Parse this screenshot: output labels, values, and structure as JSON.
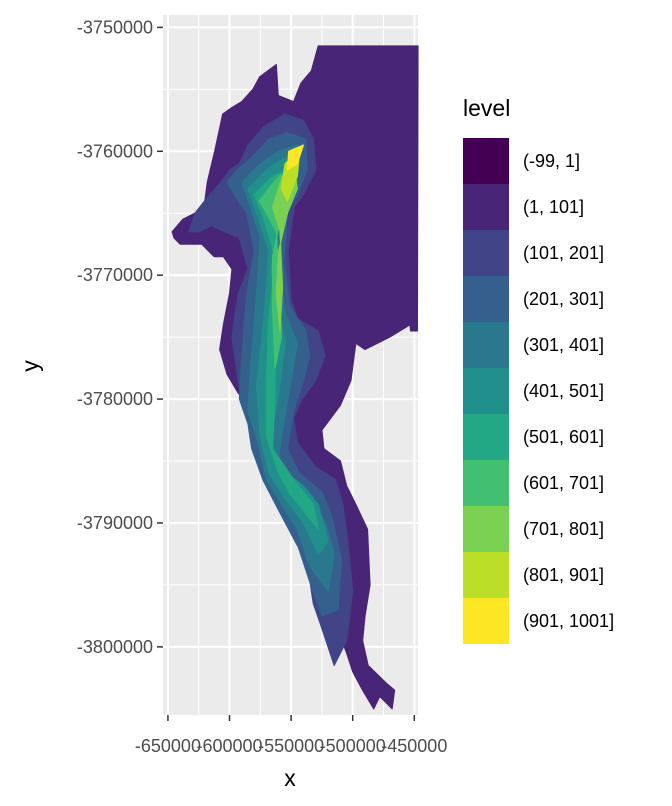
{
  "chart_data": {
    "type": "heatmap",
    "subtype": "filled-contour-map",
    "title": "",
    "xlabel": "x",
    "ylabel": "y",
    "xlim": [
      -654000,
      -447000
    ],
    "ylim": [
      -3805500,
      -3749000
    ],
    "x_ticks": [
      -650000,
      -600000,
      -550000,
      -500000,
      -450000
    ],
    "x_tick_labels": [
      "-650000",
      "-600000",
      "-550000",
      "-500000",
      "-450000"
    ],
    "y_ticks": [
      -3750000,
      -3760000,
      -3770000,
      -3780000,
      -3790000,
      -3800000
    ],
    "y_tick_labels": [
      "-3750000",
      "-3760000",
      "-3770000",
      "-3780000",
      "-3790000",
      "-3800000"
    ],
    "grid": true,
    "legend": {
      "title": "level",
      "position": "right",
      "entries": [
        {
          "label": "(-99, 1]",
          "color": "#440154"
        },
        {
          "label": "(1, 101]",
          "color": "#482576"
        },
        {
          "label": "(101, 201]",
          "color": "#414487"
        },
        {
          "label": "(201, 301]",
          "color": "#35608D"
        },
        {
          "label": "(301, 401]",
          "color": "#2A788E"
        },
        {
          "label": "(401, 501]",
          "color": "#21908C"
        },
        {
          "label": "(501, 601]",
          "color": "#22A884"
        },
        {
          "label": "(601, 701]",
          "color": "#43BF71"
        },
        {
          "label": "(701, 801]",
          "color": "#7AD151"
        },
        {
          "label": "(801, 901]",
          "color": "#BBDF27"
        },
        {
          "label": "(901, 1001]",
          "color": "#FDE725"
        }
      ]
    },
    "regions": [
      {
        "level": 1,
        "points": [
          [
            -575500,
            -3754000
          ],
          [
            -562000,
            -3753000
          ],
          [
            -560500,
            -3755500
          ],
          [
            -548000,
            -3756000
          ],
          [
            -542000,
            -3754500
          ],
          [
            -533500,
            -3753500
          ],
          [
            -528000,
            -3751500
          ],
          [
            -497500,
            -3751500
          ],
          [
            -472000,
            -3751500
          ],
          [
            -447000,
            -3751500
          ],
          [
            -447500,
            -3774500
          ],
          [
            -453000,
            -3774500
          ],
          [
            -453500,
            -3774000
          ],
          [
            -470000,
            -3775000
          ],
          [
            -490000,
            -3776000
          ],
          [
            -497500,
            -3775500
          ],
          [
            -501500,
            -3778500
          ],
          [
            -510000,
            -3780500
          ],
          [
            -525000,
            -3782500
          ],
          [
            -523500,
            -3784000
          ],
          [
            -510000,
            -3785000
          ],
          [
            -505000,
            -3787000
          ],
          [
            -497500,
            -3788500
          ],
          [
            -488000,
            -3790500
          ],
          [
            -486000,
            -3795000
          ],
          [
            -490000,
            -3797500
          ],
          [
            -492000,
            -3799500
          ],
          [
            -487500,
            -3801500
          ],
          [
            -472000,
            -3803000
          ],
          [
            -466000,
            -3803500
          ],
          [
            -468000,
            -3805000
          ],
          [
            -478000,
            -3804000
          ],
          [
            -483000,
            -3805000
          ],
          [
            -492000,
            -3803500
          ],
          [
            -500000,
            -3802000
          ],
          [
            -505000,
            -3800500
          ],
          [
            -512500,
            -3798500
          ],
          [
            -520000,
            -3797000
          ],
          [
            -528000,
            -3795500
          ],
          [
            -536000,
            -3793000
          ],
          [
            -546000,
            -3791000
          ],
          [
            -560000,
            -3788000
          ],
          [
            -567000,
            -3785500
          ],
          [
            -577500,
            -3783000
          ],
          [
            -585000,
            -3780500
          ],
          [
            -593000,
            -3779500
          ],
          [
            -602000,
            -3778000
          ],
          [
            -608000,
            -3776000
          ],
          [
            -605000,
            -3774000
          ],
          [
            -600000,
            -3771500
          ],
          [
            -598000,
            -3769500
          ],
          [
            -605000,
            -3768500
          ],
          [
            -612500,
            -3768500
          ],
          [
            -622500,
            -3767500
          ],
          [
            -635000,
            -3767500
          ],
          [
            -640000,
            -3767500
          ],
          [
            -645000,
            -3767000
          ],
          [
            -646500,
            -3766500
          ],
          [
            -638000,
            -3765500
          ],
          [
            -628000,
            -3765000
          ],
          [
            -620000,
            -3764000
          ],
          [
            -618000,
            -3762500
          ],
          [
            -612000,
            -3760000
          ],
          [
            -605500,
            -3757000
          ],
          [
            -598500,
            -3756500
          ],
          [
            -590000,
            -3756000
          ],
          [
            -581000,
            -3755000
          ]
        ]
      },
      {
        "level": 2,
        "points": [
          [
            -585000,
            -3759500
          ],
          [
            -572000,
            -3758000
          ],
          [
            -555000,
            -3757000
          ],
          [
            -540000,
            -3757500
          ],
          [
            -532000,
            -3759000
          ],
          [
            -530000,
            -3761500
          ],
          [
            -540000,
            -3763500
          ],
          [
            -547500,
            -3764500
          ],
          [
            -552500,
            -3768000
          ],
          [
            -550000,
            -3772000
          ],
          [
            -545000,
            -3773500
          ],
          [
            -528000,
            -3774500
          ],
          [
            -522500,
            -3776500
          ],
          [
            -530000,
            -3778500
          ],
          [
            -541000,
            -3780000
          ],
          [
            -548000,
            -3781500
          ],
          [
            -545000,
            -3783500
          ],
          [
            -530000,
            -3785500
          ],
          [
            -514000,
            -3786500
          ],
          [
            -508000,
            -3788500
          ],
          [
            -504000,
            -3791500
          ],
          [
            -500000,
            -3795500
          ],
          [
            -505000,
            -3799500
          ],
          [
            -515000,
            -3801500
          ],
          [
            -525000,
            -3798500
          ],
          [
            -532000,
            -3796500
          ],
          [
            -538000,
            -3792500
          ],
          [
            -548000,
            -3790500
          ],
          [
            -558000,
            -3788000
          ],
          [
            -570000,
            -3785000
          ],
          [
            -580000,
            -3782500
          ],
          [
            -588000,
            -3781000
          ],
          [
            -593000,
            -3778500
          ],
          [
            -598000,
            -3775000
          ],
          [
            -593000,
            -3771500
          ],
          [
            -585000,
            -3769500
          ],
          [
            -592000,
            -3767000
          ],
          [
            -604000,
            -3766500
          ],
          [
            -615000,
            -3766000
          ],
          [
            -625000,
            -3766500
          ],
          [
            -633000,
            -3766500
          ],
          [
            -628000,
            -3765000
          ],
          [
            -616000,
            -3763500
          ],
          [
            -607000,
            -3762500
          ],
          [
            -600000,
            -3761500
          ],
          [
            -592000,
            -3761000
          ]
        ]
      },
      {
        "level": 3,
        "points": [
          [
            -582000,
            -3760500
          ],
          [
            -568000,
            -3759000
          ],
          [
            -553000,
            -3758500
          ],
          [
            -538000,
            -3759000
          ],
          [
            -537000,
            -3761500
          ],
          [
            -545000,
            -3763500
          ],
          [
            -553000,
            -3765000
          ],
          [
            -556000,
            -3769000
          ],
          [
            -551000,
            -3772500
          ],
          [
            -538000,
            -3774500
          ],
          [
            -535000,
            -3776500
          ],
          [
            -540000,
            -3778500
          ],
          [
            -548000,
            -3781000
          ],
          [
            -553000,
            -3784000
          ],
          [
            -543000,
            -3786000
          ],
          [
            -525000,
            -3787500
          ],
          [
            -517000,
            -3789500
          ],
          [
            -509000,
            -3793000
          ],
          [
            -512000,
            -3797000
          ],
          [
            -525000,
            -3797500
          ],
          [
            -534000,
            -3795000
          ],
          [
            -544000,
            -3792000
          ],
          [
            -560000,
            -3789000
          ],
          [
            -573000,
            -3786500
          ],
          [
            -582000,
            -3784000
          ],
          [
            -585000,
            -3782000
          ],
          [
            -592000,
            -3780000
          ],
          [
            -590000,
            -3776500
          ],
          [
            -586000,
            -3771500
          ],
          [
            -580000,
            -3768000
          ],
          [
            -586000,
            -3765000
          ],
          [
            -596000,
            -3763500
          ],
          [
            -602000,
            -3762500
          ],
          [
            -594000,
            -3761500
          ]
        ]
      },
      {
        "level": 4,
        "points": [
          [
            -575000,
            -3761000
          ],
          [
            -560000,
            -3760000
          ],
          [
            -545000,
            -3759500
          ],
          [
            -545000,
            -3762500
          ],
          [
            -555000,
            -3764500
          ],
          [
            -560000,
            -3769500
          ],
          [
            -555000,
            -3773000
          ],
          [
            -545000,
            -3775500
          ],
          [
            -550000,
            -3778500
          ],
          [
            -557000,
            -3782500
          ],
          [
            -562000,
            -3786000
          ],
          [
            -548000,
            -3787500
          ],
          [
            -532000,
            -3788500
          ],
          [
            -522000,
            -3790000
          ],
          [
            -515000,
            -3792500
          ],
          [
            -520000,
            -3795500
          ],
          [
            -535000,
            -3793500
          ],
          [
            -545000,
            -3790500
          ],
          [
            -558000,
            -3788500
          ],
          [
            -570000,
            -3786500
          ],
          [
            -577000,
            -3783500
          ],
          [
            -585000,
            -3781000
          ],
          [
            -583000,
            -3777500
          ],
          [
            -578000,
            -3771500
          ],
          [
            -575000,
            -3767000
          ],
          [
            -583000,
            -3764500
          ],
          [
            -590000,
            -3762500
          ]
        ]
      },
      {
        "level": 5,
        "points": [
          [
            -570000,
            -3761500
          ],
          [
            -555000,
            -3760500
          ],
          [
            -548000,
            -3761500
          ],
          [
            -557000,
            -3763500
          ],
          [
            -563000,
            -3768500
          ],
          [
            -560000,
            -3772500
          ],
          [
            -555000,
            -3775500
          ],
          [
            -560000,
            -3779500
          ],
          [
            -567000,
            -3783500
          ],
          [
            -560000,
            -3785500
          ],
          [
            -540000,
            -3787000
          ],
          [
            -528000,
            -3788500
          ],
          [
            -520000,
            -3791500
          ],
          [
            -528000,
            -3792500
          ],
          [
            -540000,
            -3790000
          ],
          [
            -555000,
            -3788000
          ],
          [
            -568000,
            -3786000
          ],
          [
            -575000,
            -3783000
          ],
          [
            -578000,
            -3779000
          ],
          [
            -572000,
            -3773500
          ],
          [
            -568000,
            -3768000
          ],
          [
            -578000,
            -3765000
          ],
          [
            -585000,
            -3763000
          ]
        ]
      },
      {
        "level": 6,
        "points": [
          [
            -565000,
            -3762000
          ],
          [
            -552000,
            -3761500
          ],
          [
            -560000,
            -3765000
          ],
          [
            -566000,
            -3769500
          ],
          [
            -563000,
            -3774500
          ],
          [
            -563000,
            -3779500
          ],
          [
            -565000,
            -3784000
          ],
          [
            -548000,
            -3786500
          ],
          [
            -532000,
            -3788500
          ],
          [
            -528000,
            -3790500
          ],
          [
            -540000,
            -3789000
          ],
          [
            -552000,
            -3787500
          ],
          [
            -560000,
            -3786000
          ],
          [
            -570000,
            -3783000
          ],
          [
            -570000,
            -3778500
          ],
          [
            -568000,
            -3773500
          ],
          [
            -563000,
            -3768500
          ],
          [
            -572000,
            -3765500
          ],
          [
            -580000,
            -3763500
          ]
        ]
      },
      {
        "level": 7,
        "points": [
          [
            -560000,
            -3762000
          ],
          [
            -550000,
            -3761500
          ],
          [
            -557000,
            -3764500
          ],
          [
            -565000,
            -3768500
          ],
          [
            -565000,
            -3773000
          ],
          [
            -563000,
            -3777500
          ],
          [
            -558000,
            -3775000
          ],
          [
            -560000,
            -3770000
          ],
          [
            -562000,
            -3766500
          ],
          [
            -570000,
            -3765000
          ],
          [
            -576000,
            -3764000
          ]
        ]
      },
      {
        "level": 8,
        "points": [
          [
            -557000,
            -3762000
          ],
          [
            -548000,
            -3761000
          ],
          [
            -545000,
            -3763000
          ],
          [
            -553000,
            -3765000
          ],
          [
            -560000,
            -3768000
          ],
          [
            -562000,
            -3771500
          ],
          [
            -559000,
            -3774500
          ],
          [
            -557000,
            -3771000
          ],
          [
            -559000,
            -3766500
          ],
          [
            -565000,
            -3764500
          ]
        ]
      },
      {
        "level": 9,
        "points": [
          [
            -555000,
            -3761000
          ],
          [
            -543000,
            -3760000
          ],
          [
            -545000,
            -3762000
          ],
          [
            -553000,
            -3764000
          ],
          [
            -558000,
            -3763000
          ]
        ]
      },
      {
        "level": 10,
        "points": [
          [
            -552000,
            -3760000
          ],
          [
            -540000,
            -3759500
          ],
          [
            -545000,
            -3761000
          ],
          [
            -553000,
            -3761500
          ]
        ]
      }
    ]
  }
}
